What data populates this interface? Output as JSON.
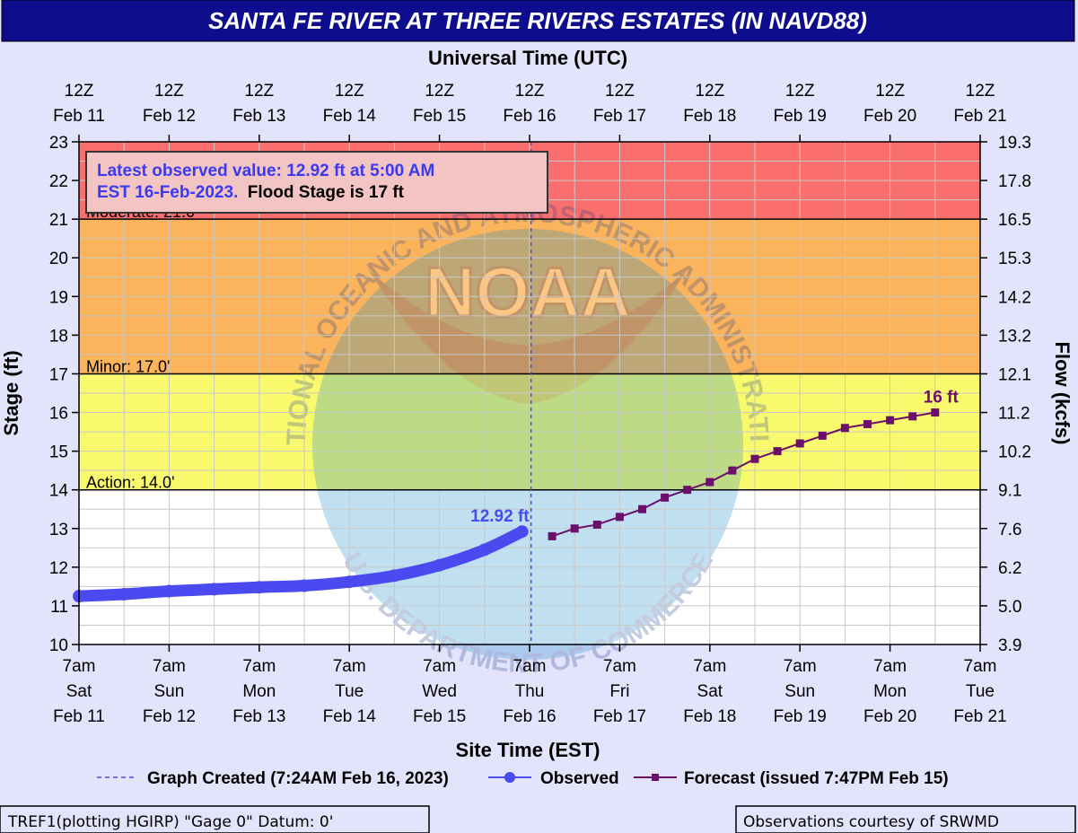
{
  "title": "SANTA FE RIVER AT THREE RIVERS ESTATES (IN NAVD88)",
  "colors": {
    "title_bg": "#0d0d8e",
    "moderate": "#fb6e6e",
    "minor": "#fbb35c",
    "action": "#f9f96e",
    "observed": "#4a4af0",
    "forecast": "#6b0f6b"
  },
  "chart_data": {
    "type": "line",
    "top_axis": {
      "label": "Universal Time (UTC)",
      "ticks": [
        {
          "time": "12Z",
          "date": "Feb 11"
        },
        {
          "time": "12Z",
          "date": "Feb 12"
        },
        {
          "time": "12Z",
          "date": "Feb 13"
        },
        {
          "time": "12Z",
          "date": "Feb 14"
        },
        {
          "time": "12Z",
          "date": "Feb 15"
        },
        {
          "time": "12Z",
          "date": "Feb 16"
        },
        {
          "time": "12Z",
          "date": "Feb 17"
        },
        {
          "time": "12Z",
          "date": "Feb 18"
        },
        {
          "time": "12Z",
          "date": "Feb 19"
        },
        {
          "time": "12Z",
          "date": "Feb 20"
        },
        {
          "time": "12Z",
          "date": "Feb 21"
        }
      ]
    },
    "xlabel": "Site Time (EST)",
    "x_ticks": [
      {
        "time": "7am",
        "day": "Sat",
        "date": "Feb 11"
      },
      {
        "time": "7am",
        "day": "Sun",
        "date": "Feb 12"
      },
      {
        "time": "7am",
        "day": "Mon",
        "date": "Feb 13"
      },
      {
        "time": "7am",
        "day": "Tue",
        "date": "Feb 14"
      },
      {
        "time": "7am",
        "day": "Wed",
        "date": "Feb 15"
      },
      {
        "time": "7am",
        "day": "Thu",
        "date": "Feb 16"
      },
      {
        "time": "7am",
        "day": "Fri",
        "date": "Feb 17"
      },
      {
        "time": "7am",
        "day": "Sat",
        "date": "Feb 18"
      },
      {
        "time": "7am",
        "day": "Sun",
        "date": "Feb 19"
      },
      {
        "time": "7am",
        "day": "Mon",
        "date": "Feb 20"
      },
      {
        "time": "7am",
        "day": "Tue",
        "date": "Feb 21"
      }
    ],
    "xlim": [
      "2023-02-11 07:00",
      "2023-02-21 07:00"
    ],
    "ylabel": "Stage (ft)",
    "ylim": [
      10,
      23
    ],
    "y_ticks": [
      10,
      11,
      12,
      13,
      14,
      15,
      16,
      17,
      18,
      19,
      20,
      21,
      22,
      23
    ],
    "y2label": "Flow (kcfs)",
    "y2_ticks": [
      "3.9",
      "5.0",
      "6.2",
      "7.6",
      "9.1",
      "10.2",
      "11.2",
      "12.1",
      "13.2",
      "14.2",
      "15.3",
      "16.5",
      "17.8",
      "19.3"
    ],
    "flood_categories": [
      {
        "name": "Moderate",
        "label": "Moderate: 21.0'",
        "from": 21,
        "to": 23
      },
      {
        "name": "Minor",
        "label": "Minor: 17.0'",
        "from": 17,
        "to": 21
      },
      {
        "name": "Action",
        "label": "Action: 14.0'",
        "from": 14,
        "to": 17
      }
    ],
    "graph_created": "2023-02-16 07:24",
    "series": [
      {
        "name": "Observed",
        "end_label": "12.92 ft",
        "points": [
          [
            "2023-02-11 07:00",
            11.25
          ],
          [
            "2023-02-11 19:00",
            11.3
          ],
          [
            "2023-02-12 07:00",
            11.38
          ],
          [
            "2023-02-12 19:00",
            11.43
          ],
          [
            "2023-02-13 07:00",
            11.48
          ],
          [
            "2023-02-13 19:00",
            11.52
          ],
          [
            "2023-02-14 07:00",
            11.62
          ],
          [
            "2023-02-14 19:00",
            11.78
          ],
          [
            "2023-02-15 07:00",
            12.05
          ],
          [
            "2023-02-15 19:00",
            12.45
          ],
          [
            "2023-02-16 05:00",
            12.92
          ]
        ]
      },
      {
        "name": "Forecast",
        "end_label": "16 ft",
        "points": [
          [
            "2023-02-16 13:00",
            12.8
          ],
          [
            "2023-02-16 19:00",
            13.0
          ],
          [
            "2023-02-17 01:00",
            13.1
          ],
          [
            "2023-02-17 07:00",
            13.3
          ],
          [
            "2023-02-17 13:00",
            13.5
          ],
          [
            "2023-02-17 19:00",
            13.8
          ],
          [
            "2023-02-18 01:00",
            14.0
          ],
          [
            "2023-02-18 07:00",
            14.2
          ],
          [
            "2023-02-18 13:00",
            14.5
          ],
          [
            "2023-02-18 19:00",
            14.8
          ],
          [
            "2023-02-19 01:00",
            15.0
          ],
          [
            "2023-02-19 07:00",
            15.2
          ],
          [
            "2023-02-19 13:00",
            15.4
          ],
          [
            "2023-02-19 19:00",
            15.6
          ],
          [
            "2023-02-20 01:00",
            15.7
          ],
          [
            "2023-02-20 07:00",
            15.8
          ],
          [
            "2023-02-20 13:00",
            15.9
          ],
          [
            "2023-02-20 19:00",
            16.0
          ]
        ]
      }
    ],
    "legend": [
      {
        "type": "dashed",
        "label": "Graph Created (7:24AM Feb 16, 2023)"
      },
      {
        "type": "observed",
        "label": "Observed"
      },
      {
        "type": "forecast",
        "label": "Forecast (issued 7:47PM Feb 15)"
      }
    ]
  },
  "info_box": {
    "line1": "Latest observed value: 12.92 ft at 5:00 AM",
    "line2": "EST 16-Feb-2023.",
    "line2_flood": "Flood Stage is 17 ft"
  },
  "watermark": {
    "logo_text": "NOAA",
    "ring_top": "NATIONAL OCEANIC AND ATMOSPHERIC ADMINISTRATION",
    "ring_bottom": "U.S. DEPARTMENT OF COMMERCE"
  },
  "footer": {
    "left": "TREF1(plotting HGIRP) \"Gage 0\" Datum: 0'",
    "right": "Observations courtesy of SRWMD"
  }
}
